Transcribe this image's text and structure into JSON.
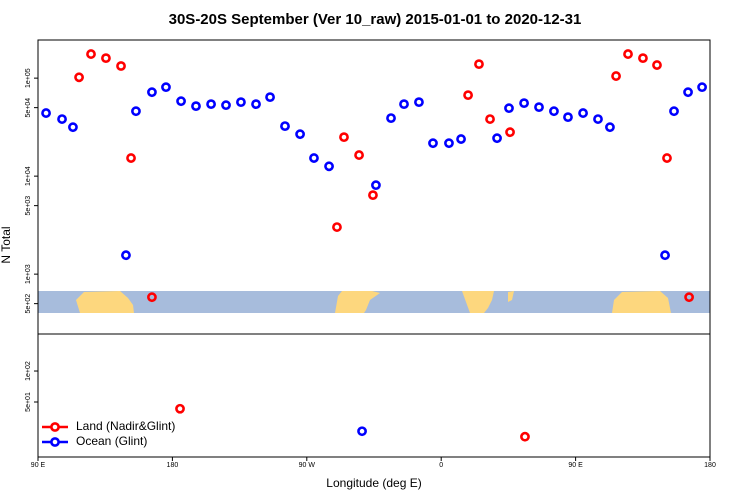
{
  "chart_data": [
    {
      "type": "scatter",
      "title": "30S-20S September (Ver 10_raw)   2015-01-01 to 2020-12-31",
      "y_label": "N Total",
      "log_y": true,
      "xlim": [
        90,
        540
      ],
      "ylim": [
        245,
        245000
      ],
      "yticks": [
        {
          "value": 100000,
          "label": "1e+05"
        },
        {
          "value": 50000,
          "label": "5e+04"
        },
        {
          "value": 10000,
          "label": "1e+04"
        },
        {
          "value": 5000,
          "label": "5e+03"
        },
        {
          "value": 1000,
          "label": "1e+03"
        },
        {
          "value": 500,
          "label": "5e+02"
        }
      ],
      "series": [
        {
          "color": "#ff0000",
          "x": [
            117.5,
            125.5,
            135.5,
            145.6,
            152.3,
            166.3,
            290.2,
            294.9,
            305.0,
            314.3,
            378.0,
            385.3,
            392.7,
            406.1,
            477.1,
            485.1,
            495.1,
            504.5,
            511.2,
            526.0
          ],
          "values": [
            102000,
            176000,
            160000,
            133000,
            15300,
            582,
            3020,
            25000,
            16400,
            6400,
            67100,
            139000,
            38200,
            28100,
            105000,
            176000,
            160000,
            136000,
            15300,
            582
          ]
        },
        {
          "color": "#0000ff",
          "x": [
            95.4,
            106.1,
            113.4,
            148.9,
            155.6,
            166.3,
            175.7,
            185.8,
            195.8,
            205.9,
            215.9,
            225.9,
            236.0,
            245.4,
            255.4,
            265.5,
            274.8,
            284.9,
            316.3,
            326.4,
            335.1,
            345.1,
            354.5,
            365.2,
            373.3,
            397.4,
            405.4,
            415.5,
            425.5,
            435.5,
            444.9,
            455.0,
            465.0,
            473.0,
            509.9,
            515.9,
            525.3,
            534.7
          ],
          "values": [
            44000,
            38200,
            31600,
            1560,
            46000,
            71900,
            80900,
            58200,
            51800,
            54300,
            53000,
            56900,
            54300,
            64000,
            32400,
            26800,
            15300,
            12600,
            8090,
            39100,
            54300,
            56900,
            21700,
            21700,
            23900,
            24400,
            49400,
            55600,
            50600,
            46000,
            40000,
            44000,
            38200,
            31600,
            1560,
            46000,
            71900,
            80900
          ]
        }
      ]
    },
    {
      "type": "scatter",
      "x_label": "Longitude (deg E)",
      "log_y": true,
      "legend": "bottom-left",
      "xlim": [
        90,
        540
      ],
      "xticks": [
        {
          "value": 90,
          "label": "90 E"
        },
        {
          "value": 180,
          "label": "180"
        },
        {
          "value": 270,
          "label": "90 W"
        },
        {
          "value": 360,
          "label": "0"
        },
        {
          "value": 450,
          "label": "90 E"
        },
        {
          "value": 540,
          "label": "180"
        }
      ],
      "ylim": [
        14.6,
        229
      ],
      "yticks": [
        {
          "value": 100,
          "label": "1e+02"
        },
        {
          "value": 50,
          "label": "5e+01"
        }
      ],
      "series": [
        {
          "name": "Land (Nadir&Glint)",
          "color": "#ff0000",
          "x": [
            185.1,
            416.1
          ],
          "values": [
            43,
            23
          ]
        },
        {
          "name": "Ocean (Glint)",
          "color": "#0000ff",
          "x": [
            307.0
          ],
          "values": [
            26
          ]
        }
      ]
    }
  ]
}
